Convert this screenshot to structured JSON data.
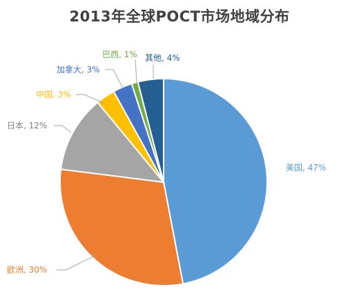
{
  "chart_data": {
    "type": "pie",
    "title": "2013年全球POCT市场地域分布",
    "slices": [
      {
        "label": "美国, 47%",
        "value": 47,
        "color": "#5b9bd5",
        "text_color": "#5b9bd5"
      },
      {
        "label": "欧洲, 30%",
        "value": 30,
        "color": "#ed7d31",
        "text_color": "#ed7d31"
      },
      {
        "label": "日本, 12%",
        "value": 12,
        "color": "#a5a5a5",
        "text_color": "#7f7f7f"
      },
      {
        "label": "中国, 3%",
        "value": 3,
        "color": "#ffc000",
        "text_color": "#ffc000"
      },
      {
        "label": "加拿大, 3%",
        "value": 3,
        "color": "#4472c4",
        "text_color": "#4472c4"
      },
      {
        "label": "巴西, 1%",
        "value": 1,
        "color": "#70ad47",
        "text_color": "#70ad47"
      },
      {
        "label": "其他, 4%",
        "value": 4,
        "color": "#255e91",
        "text_color": "#255e91"
      }
    ],
    "start_angle_deg": 0,
    "direction": "clockwise",
    "legend": "none"
  }
}
